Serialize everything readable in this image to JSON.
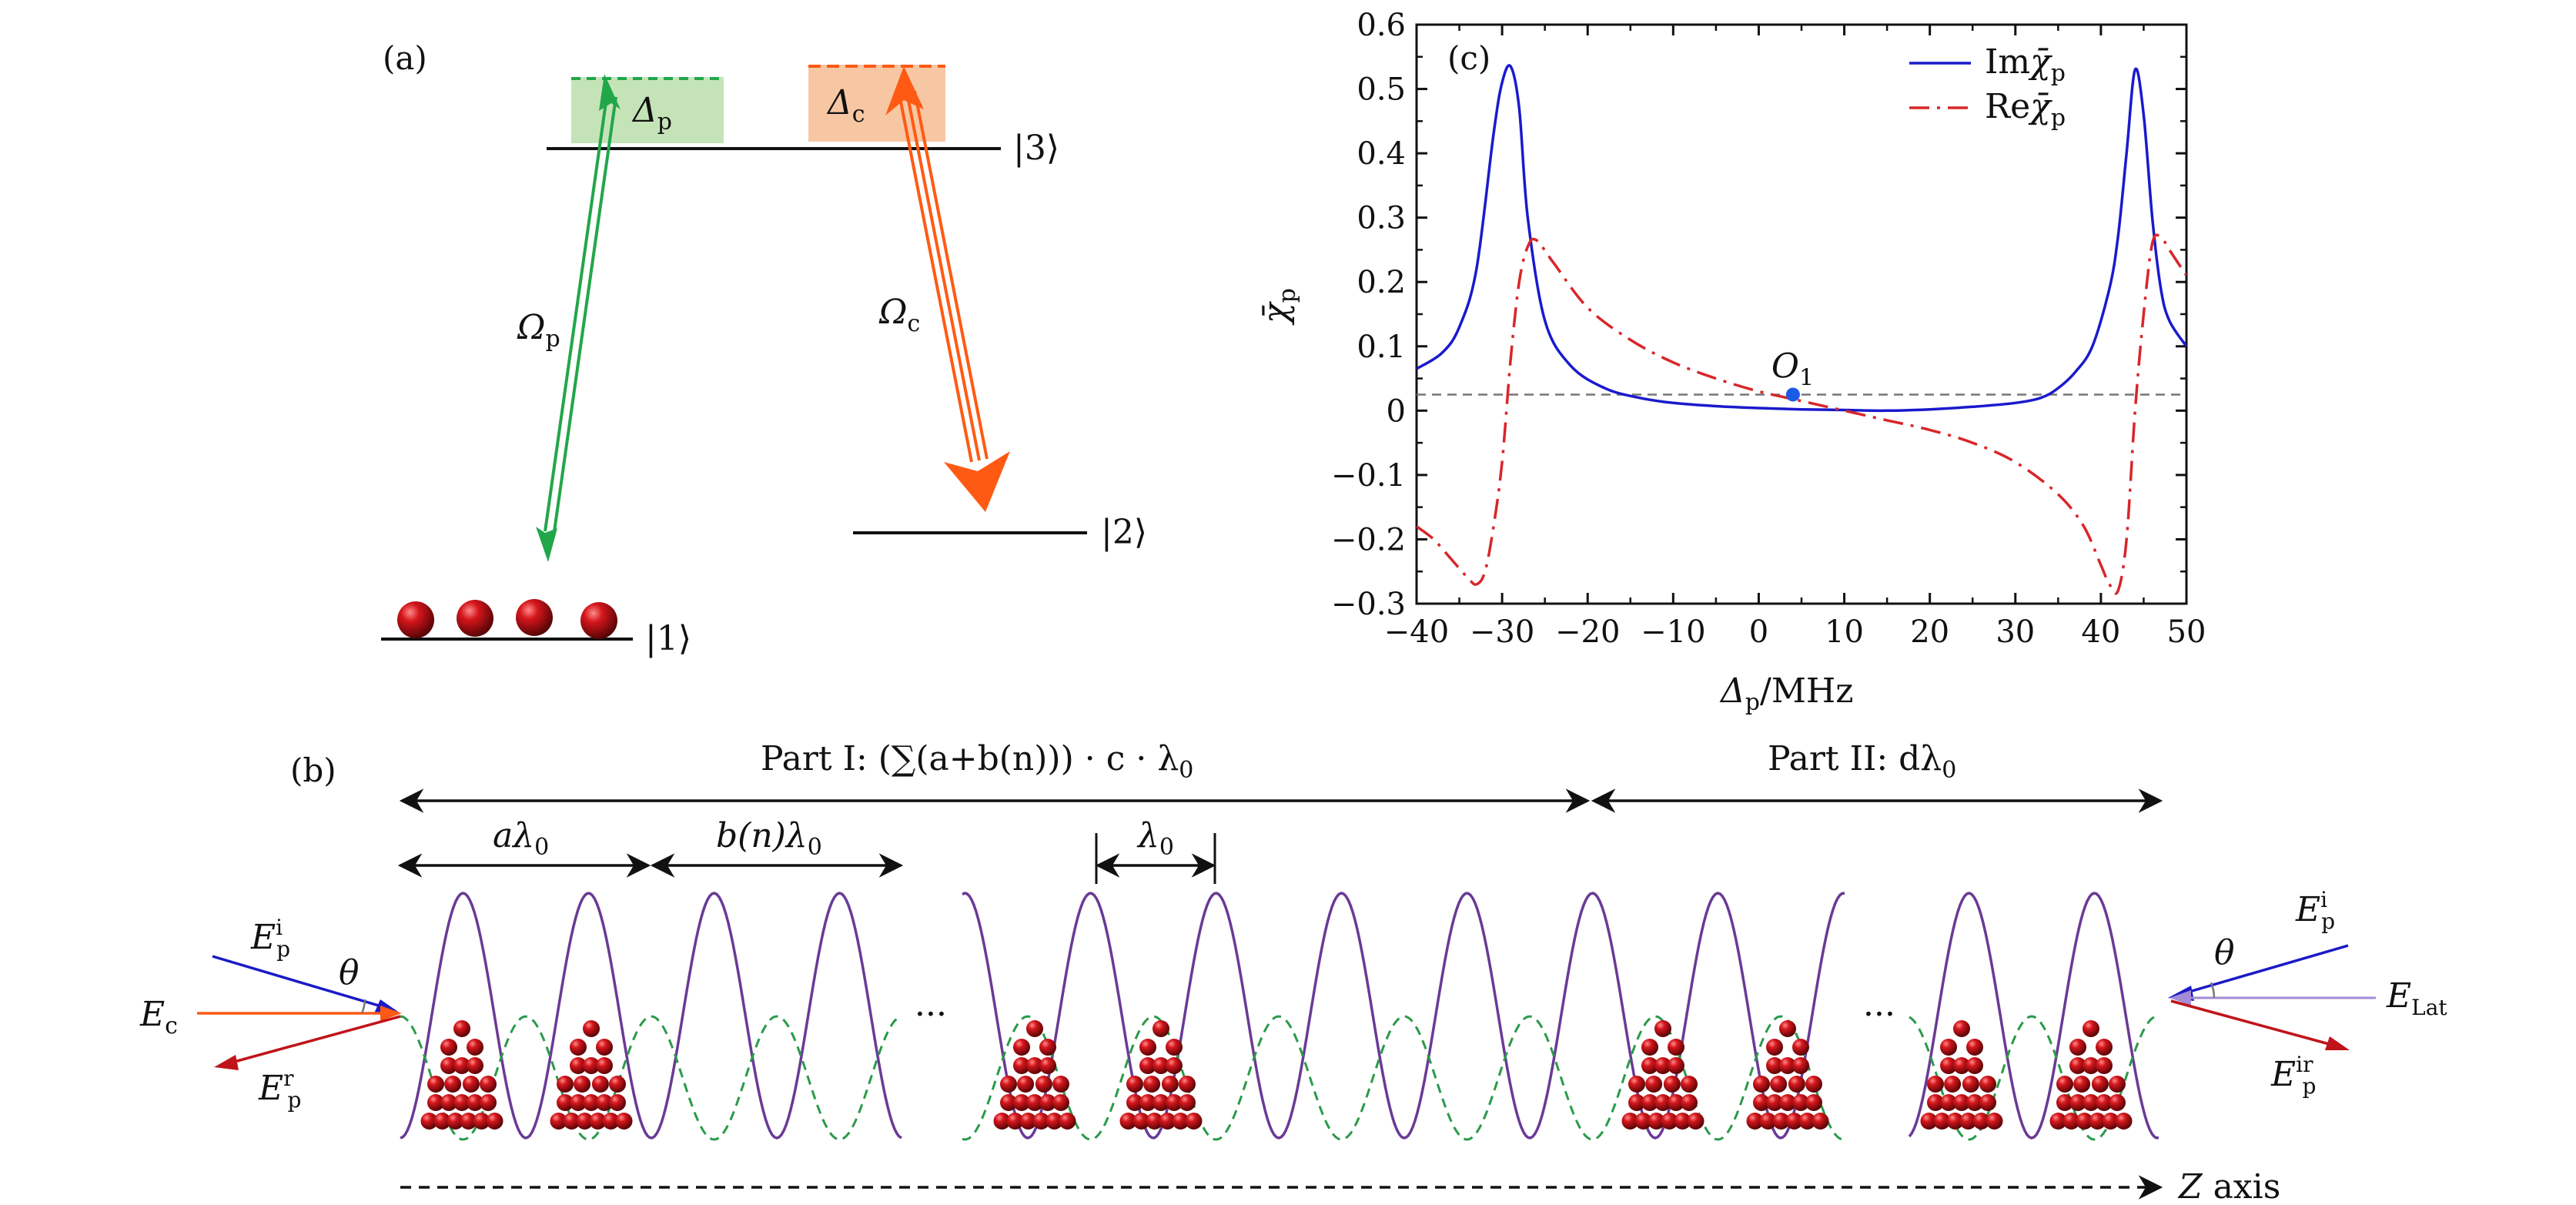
{
  "panel_a": {
    "label": "(a)",
    "level1": "|1⟩",
    "level2": "|2⟩",
    "level3": "|3⟩",
    "delta_p": {
      "sym": "Δ",
      "sub": "p"
    },
    "delta_c": {
      "sym": "Δ",
      "sub": "c"
    },
    "omega_p": {
      "sym": "Ω",
      "sub": "p"
    },
    "omega_c": {
      "sym": "Ω",
      "sub": "c"
    },
    "colors": {
      "probe": "#22a64a",
      "coupling": "#ff5a14",
      "detune_p_box": "#c4e4b8",
      "detune_c_box": "#f7c7a4",
      "atom": "#c0141a"
    }
  },
  "panel_b": {
    "label": "(b)",
    "part1_label": "Part I: (∑(a+b(n))) · c · λ",
    "part1_sub": "0",
    "part2_label": "Part II: dλ",
    "part2_sub": "0",
    "a_label": "aλ",
    "a_sub": "0",
    "b_label": "b(n)λ",
    "b_sub": "0",
    "lambda_label": "λ",
    "lambda_sub": "0",
    "ellipsis": "···",
    "z_axis": "Z",
    "z_axis_word": "axis",
    "theta": "θ",
    "left_fields": {
      "Ec": "E",
      "Ec_sub": "c",
      "Epi": "E",
      "Epi_sup": "i",
      "Epi_sub": "p",
      "Epr": "E",
      "Epr_sup": "r",
      "Epr_sub": "p"
    },
    "right_fields": {
      "Epi": "E",
      "Epi_sup": "i",
      "Epi_sub": "p",
      "Elat": "E",
      "Elat_sub": "Lat",
      "Epir": "E",
      "Epir_sup": "ir",
      "Epir_sub": "p"
    },
    "colors": {
      "lattice": "#6a3a96",
      "dashed": "#2a9a4a",
      "probe_in": "#1a1ac8",
      "reflect": "#c0141a",
      "coupling": "#ff5a14",
      "lat_beam": "#a48cd6"
    }
  },
  "chart_data": {
    "type": "line",
    "panel_label": "(c)",
    "xlabel": "Δp/MHz",
    "xlabel_sym": "Δ",
    "xlabel_sub": "p",
    "xlabel_unit": "/MHz",
    "ylabel": "χ̄p",
    "xlim": [
      -40,
      50
    ],
    "ylim": [
      -0.3,
      0.6
    ],
    "x_ticks": [
      "−40",
      "−30",
      "−20",
      "−10",
      "0",
      "10",
      "20",
      "30",
      "40",
      "50"
    ],
    "x_tick_values": [
      -40,
      -30,
      -20,
      -10,
      0,
      10,
      20,
      30,
      40,
      50
    ],
    "y_ticks": [
      "−0.3",
      "−0.2",
      "−0.1",
      "0",
      "0.1",
      "0.2",
      "0.3",
      "0.4",
      "0.5",
      "0.6"
    ],
    "y_tick_values": [
      -0.3,
      -0.2,
      -0.1,
      0,
      0.1,
      0.2,
      0.3,
      0.4,
      0.5,
      0.6
    ],
    "reference_line_y": 0.025,
    "point": {
      "label": "O",
      "sub": "1",
      "x": 4,
      "y": 0.025
    },
    "series": [
      {
        "name": "Imχ̄p",
        "legend": "Im",
        "color": "#1a1acd",
        "style": "solid",
        "x": [
          -40,
          -37,
          -35,
          -33,
          -31,
          -30,
          -29,
          -28,
          -27,
          -25,
          -22,
          -18,
          -14,
          -10,
          -5,
          0,
          5,
          10,
          15,
          20,
          25,
          30,
          33,
          35,
          37,
          39,
          41,
          42,
          43,
          44,
          45,
          46,
          47,
          48,
          50
        ],
        "y": [
          0.065,
          0.09,
          0.13,
          0.22,
          0.43,
          0.51,
          0.535,
          0.47,
          0.3,
          0.14,
          0.07,
          0.035,
          0.02,
          0.012,
          0.007,
          0.004,
          0.002,
          0.001,
          0.0,
          0.002,
          0.006,
          0.012,
          0.02,
          0.035,
          0.06,
          0.1,
          0.19,
          0.27,
          0.4,
          0.53,
          0.46,
          0.3,
          0.19,
          0.14,
          0.1
        ]
      },
      {
        "name": "Reχ̄p",
        "legend": "Re",
        "color": "#d8262a",
        "style": "dashdot",
        "x": [
          -40,
          -38,
          -36,
          -34,
          -33,
          -32,
          -31,
          -30,
          -29,
          -28,
          -27,
          -26,
          -24,
          -20,
          -15,
          -10,
          -5,
          0,
          5,
          10,
          15,
          20,
          25,
          30,
          35,
          38,
          40,
          41,
          42,
          43,
          44,
          45,
          46,
          47,
          48,
          50
        ],
        "y": [
          -0.18,
          -0.2,
          -0.23,
          -0.26,
          -0.27,
          -0.25,
          -0.18,
          -0.08,
          0.08,
          0.2,
          0.255,
          0.265,
          0.23,
          0.16,
          0.11,
          0.075,
          0.05,
          0.03,
          0.015,
          0.0,
          -0.015,
          -0.03,
          -0.05,
          -0.08,
          -0.13,
          -0.18,
          -0.24,
          -0.27,
          -0.28,
          -0.2,
          0.0,
          0.15,
          0.26,
          0.27,
          0.25,
          0.21
        ]
      }
    ]
  }
}
